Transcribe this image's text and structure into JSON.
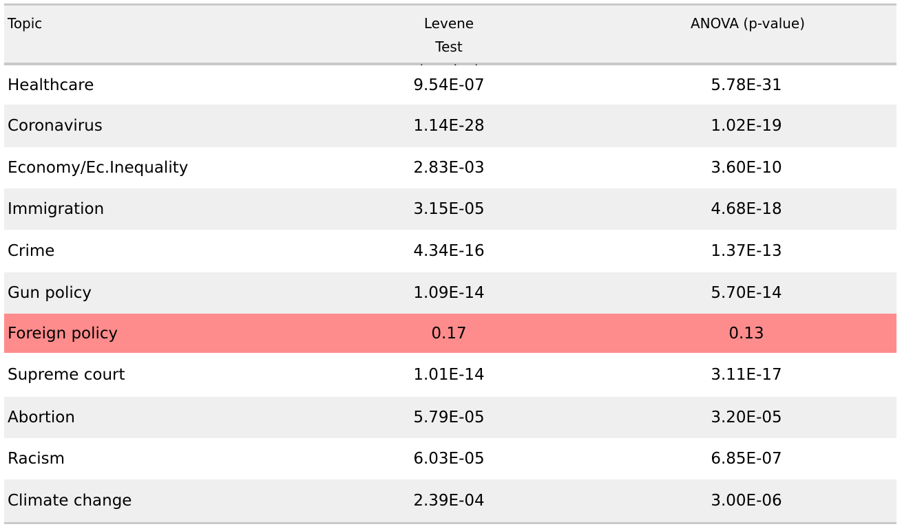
{
  "table": {
    "headers": {
      "topic": "Topic",
      "levene_line1": "Levene Test",
      "levene_line2": "(p-value)",
      "anova": "ANOVA (p-value)"
    },
    "rows": [
      {
        "topic": "Healthcare",
        "levene": "9.54E-07",
        "anova": "5.78E-31"
      },
      {
        "topic": "Coronavirus",
        "levene": "1.14E-28",
        "anova": "1.02E-19"
      },
      {
        "topic": "Economy/Ec.Inequality",
        "levene": "2.83E-03",
        "anova": "3.60E-10"
      },
      {
        "topic": "Immigration",
        "levene": "3.15E-05",
        "anova": "4.68E-18"
      },
      {
        "topic": "Crime",
        "levene": "4.34E-16",
        "anova": "1.37E-13"
      },
      {
        "topic": "Gun policy",
        "levene": "1.09E-14",
        "anova": "5.70E-14"
      },
      {
        "topic": "Foreign policy",
        "levene": "0.17",
        "anova": "0.13"
      },
      {
        "topic": "Supreme court",
        "levene": "1.01E-14",
        "anova": "3.11E-17"
      },
      {
        "topic": "Abortion",
        "levene": "5.79E-05",
        "anova": "3.20E-05"
      },
      {
        "topic": "Racism",
        "levene": "6.03E-05",
        "anova": "6.85E-07"
      },
      {
        "topic": "Climate change",
        "levene": "2.39E-04",
        "anova": "3.00E-06"
      }
    ],
    "colors": {
      "highlight_row": "#ff8c8c",
      "shaded_row": "#efefef",
      "rule": "#c9c9c9"
    }
  }
}
